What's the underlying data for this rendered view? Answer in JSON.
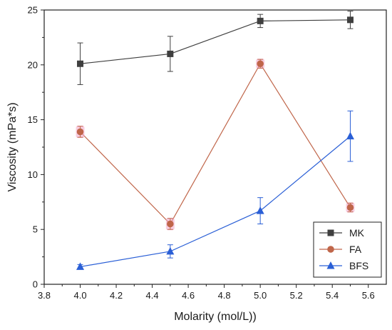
{
  "chart_data": {
    "type": "line",
    "xlabel": "Molarity (mol/L))",
    "ylabel": "Viscosity (mPa*s)",
    "xlim": [
      3.8,
      5.7
    ],
    "ylim": [
      0,
      25
    ],
    "x_ticks": [
      "3.8",
      "4.0",
      "4.2",
      "4.4",
      "4.6",
      "4.8",
      "5.0",
      "5.2",
      "5.4",
      "5.6"
    ],
    "y_ticks": [
      "0",
      "5",
      "10",
      "15",
      "20",
      "25"
    ],
    "grid": false,
    "legend_position": "bottom-right",
    "x": [
      4.0,
      4.5,
      5.0,
      5.5
    ],
    "series": [
      {
        "name": "MK",
        "marker": "square",
        "color": "#3f3f3f",
        "values": [
          20.1,
          21.0,
          24.0,
          24.1
        ],
        "errors": [
          1.9,
          1.6,
          0.6,
          0.8
        ]
      },
      {
        "name": "FA",
        "marker": "circle",
        "color": "#c0664a",
        "values": [
          13.9,
          5.5,
          20.1,
          7.0
        ],
        "errors": [
          0.5,
          0.5,
          0.4,
          0.4
        ]
      },
      {
        "name": "BFS",
        "marker": "triangle",
        "color": "#2a5fd6",
        "values": [
          1.6,
          3.0,
          6.7,
          13.5
        ],
        "errors": [
          0.2,
          0.6,
          1.2,
          2.3
        ]
      }
    ]
  }
}
